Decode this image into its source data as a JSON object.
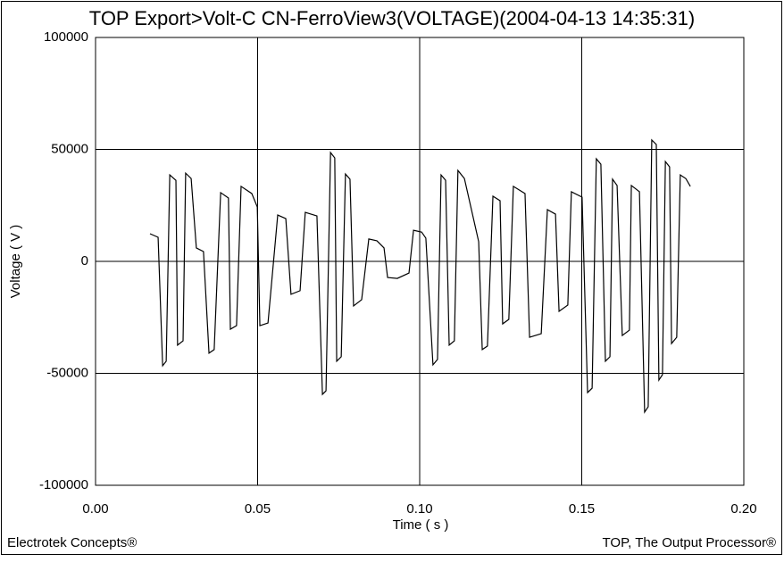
{
  "chart_data": {
    "type": "line",
    "title": "TOP Export>Volt-C CN-FerroView3(VOLTAGE)(2004-04-13 14:35:31)",
    "x_label": "Time ( s )",
    "y_label": "Voltage ( V )",
    "footer_left": "Electrotek Concepts®",
    "footer_right": "TOP, The Output Processor®",
    "color": "#000000",
    "grid": true,
    "xlim": [
      0,
      0.2
    ],
    "ylim": [
      -100000,
      100000
    ],
    "xticks": [
      {
        "value": 0,
        "label": "0.00"
      },
      {
        "value": 0.05,
        "label": "0.05"
      },
      {
        "value": 0.1,
        "label": "0.10"
      },
      {
        "value": 0.15,
        "label": "0.15"
      },
      {
        "value": 0.2,
        "label": "0.20"
      }
    ],
    "yticks": [
      -100000,
      -50000,
      0,
      50000,
      100000
    ],
    "x": [
      0.0168,
      0.0193,
      0.0207,
      0.0218,
      0.0229,
      0.0248,
      0.0253,
      0.027,
      0.0278,
      0.0295,
      0.0311,
      0.0333,
      0.035,
      0.0366,
      0.0386,
      0.041,
      0.0416,
      0.0435,
      0.0449,
      0.0482,
      0.0499,
      0.0507,
      0.0532,
      0.0562,
      0.0587,
      0.0603,
      0.0631,
      0.0647,
      0.0683,
      0.07,
      0.0711,
      0.0725,
      0.0738,
      0.0744,
      0.0758,
      0.0771,
      0.0785,
      0.0796,
      0.0821,
      0.0843,
      0.0868,
      0.089,
      0.0901,
      0.0931,
      0.0967,
      0.0981,
      0.1006,
      0.1019,
      0.1041,
      0.1055,
      0.1066,
      0.108,
      0.1091,
      0.1107,
      0.1118,
      0.1138,
      0.1182,
      0.1193,
      0.1209,
      0.1226,
      0.1248,
      0.1256,
      0.1275,
      0.1289,
      0.1325,
      0.1339,
      0.1375,
      0.1394,
      0.1419,
      0.143,
      0.1457,
      0.1468,
      0.1501,
      0.1518,
      0.1532,
      0.1545,
      0.1559,
      0.1573,
      0.1587,
      0.1595,
      0.1609,
      0.1625,
      0.1647,
      0.1653,
      0.1678,
      0.1694,
      0.1705,
      0.1716,
      0.173,
      0.1738,
      0.1749,
      0.1758,
      0.1771,
      0.1777,
      0.1793,
      0.1804,
      0.1821,
      0.1835
    ],
    "values": [
      12350,
      10760,
      -46600,
      -44600,
      38600,
      36200,
      -37400,
      -35500,
      39400,
      37000,
      6000,
      4400,
      -41000,
      -39400,
      30700,
      28300,
      -30300,
      -28700,
      33500,
      30300,
      24300,
      -28700,
      -27500,
      20700,
      19100,
      -14700,
      -13100,
      21900,
      20300,
      -59400,
      -57800,
      48600,
      46200,
      -44600,
      -42600,
      39000,
      36700,
      -19900,
      -17100,
      10000,
      9200,
      6000,
      -7200,
      -7600,
      -5200,
      13900,
      13100,
      10400,
      -46200,
      -43800,
      38600,
      36200,
      -37400,
      -35500,
      40600,
      37000,
      8800,
      -39400,
      -37800,
      29100,
      27100,
      -27900,
      -25900,
      33500,
      30300,
      -33900,
      -32300,
      23100,
      21100,
      -22300,
      -19500,
      31100,
      28700,
      -58600,
      -56600,
      45800,
      43400,
      -44600,
      -42600,
      36700,
      33900,
      -33100,
      -30700,
      33900,
      31100,
      -67300,
      -64900,
      54200,
      52200,
      -53000,
      -50600,
      44600,
      42200,
      -36700,
      -33900,
      38600,
      37000,
      33500
    ]
  }
}
